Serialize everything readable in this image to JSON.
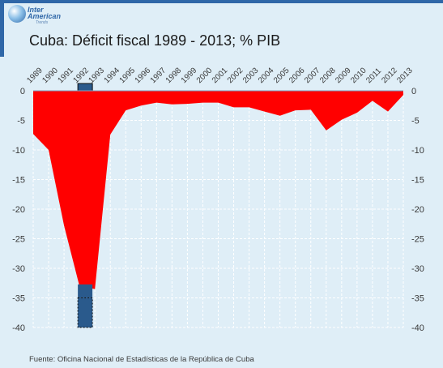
{
  "header": {
    "logo_line1": "Inter",
    "logo_line2": "American",
    "logo_line3": "Trends"
  },
  "chart_data": {
    "type": "area",
    "title": "Cuba: Déficit fiscal 1989 - 2013; % PIB",
    "source": "Fuente: Oficina Nacional de Estadísticas de la República de Cuba",
    "x": [
      "1989",
      "1990",
      "1991",
      "1992",
      "1993",
      "1994",
      "1995",
      "1996",
      "1997",
      "1998",
      "1999",
      "2000",
      "2001",
      "2002",
      "2003",
      "2004",
      "2005",
      "2006",
      "2007",
      "2008",
      "2009",
      "2010",
      "2011",
      "2012",
      "2013"
    ],
    "series": [
      {
        "values": [
          -7.3,
          -10,
          -22.8,
          -33,
          -33.5,
          -7.4,
          -3.3,
          -2.5,
          -2,
          -2.3,
          -2.2,
          -2,
          -2,
          -2.8,
          -2.8,
          -3.5,
          -4.2,
          -3.3,
          -3.2,
          -6.7,
          -4.9,
          -3.7,
          -1.7,
          -3.5,
          -0.7
        ],
        "color": "#ff0000"
      }
    ],
    "ylim": [
      -40,
      0
    ],
    "yticks": [
      0,
      -5,
      -10,
      -15,
      -20,
      -25,
      -30,
      -35,
      -40
    ],
    "grid": true,
    "highlight": {
      "year": "1992",
      "color": "#2a5a8c"
    }
  }
}
